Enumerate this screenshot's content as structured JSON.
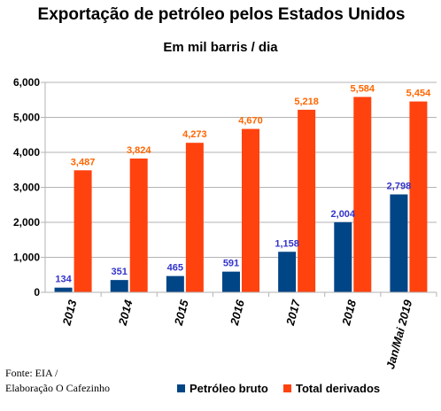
{
  "chart_data": {
    "type": "bar",
    "title": "Exportação de petróleo pelos Estados Unidos",
    "subtitle": "Em mil barris / dia",
    "categories": [
      "2013",
      "2014",
      "2015",
      "2016",
      "2017",
      "2018",
      "Jan/Mai 2019"
    ],
    "series": [
      {
        "name": "Petróleo bruto",
        "color": "#004586",
        "label_color": "#3333cc",
        "values": [
          134,
          351,
          465,
          591,
          1158,
          2004,
          2798
        ],
        "labels": [
          "134",
          "351",
          "465",
          "591",
          "1,158",
          "2,004",
          "2,798"
        ]
      },
      {
        "name": "Total derivados",
        "color": "#ff420e",
        "label_color": "#ff6600",
        "values": [
          3487,
          3824,
          4273,
          4670,
          5218,
          5584,
          5454
        ],
        "labels": [
          "3,487",
          "3,824",
          "4,273",
          "4,670",
          "5,218",
          "5,584",
          "5,454"
        ]
      }
    ],
    "y_ticks": [
      "0",
      "1,000",
      "2,000",
      "3,000",
      "4,000",
      "5,000",
      "6,000"
    ],
    "ylim": [
      0,
      6000
    ],
    "grid": true,
    "legend_position": "bottom"
  },
  "source": {
    "line1": "Fonte: EIA /",
    "line2": "Elaboração O Cafezinho"
  }
}
